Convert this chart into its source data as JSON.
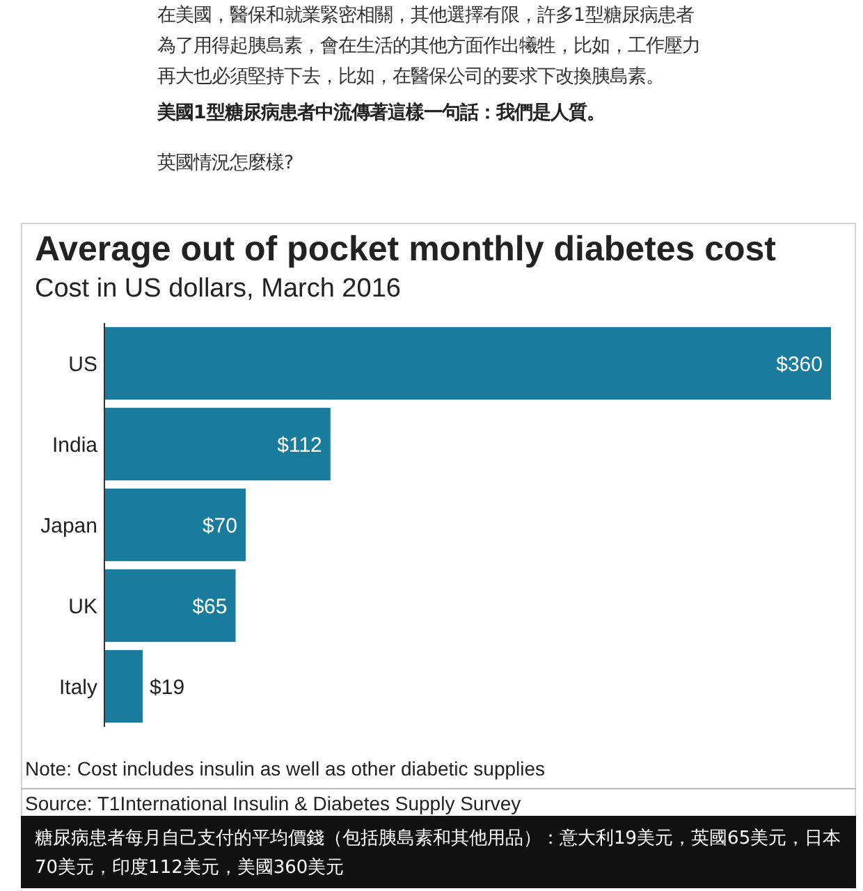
{
  "chart_data": {
    "type": "bar",
    "orientation": "horizontal",
    "title": "Average out of pocket monthly diabetes cost",
    "subtitle": "Cost in US dollars, March 2016",
    "categories": [
      "US",
      "India",
      "Japan",
      "UK",
      "Italy"
    ],
    "values": [
      360,
      112,
      70,
      65,
      19
    ],
    "value_labels": [
      "$360",
      "$112",
      "$70",
      "$65",
      "$19"
    ],
    "color": "#1a7c9c",
    "annotations": [
      "在美國，醫保和就業緊密相關，其他選擇有限，許多1型糖尿病患者為了用得起胰島素，會在生活的其他方面作出犧牲，比如，工作壓力再大也必須堅持下去，比如，在醫保公司的要求下改換胰島素。",
      "美國1型糖尿病患者中流傳著這樣一句話：我們是人質。",
      "英國情況怎麼樣?",
      "Note: Cost includes insulin as well as other diabetic supplies",
      "Source: T1International Insulin & Diabetes Supply Survey",
      "糖尿病患者每月自己支付的平均價錢（包括胰島素和其他用品）：意大利19美元，英國65美元，日本70美元，印度112美元，美國360美元"
    ]
  }
}
